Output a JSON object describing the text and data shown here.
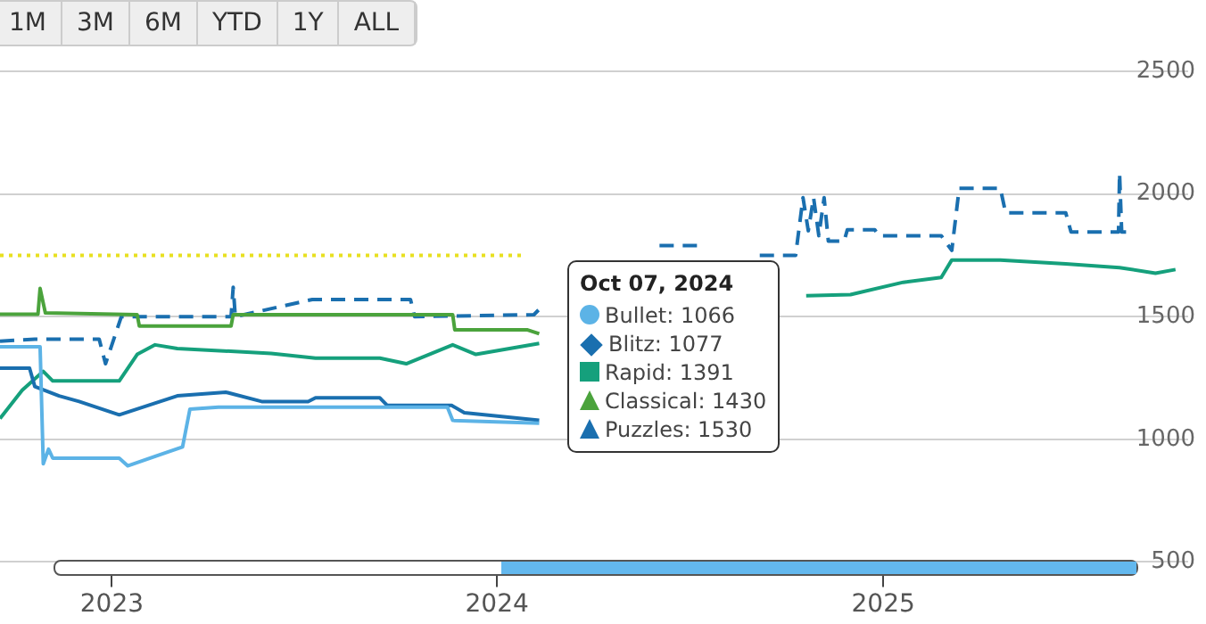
{
  "chart_data": {
    "type": "line",
    "annotations": [
      "1M",
      "3M",
      "6M",
      "YTD",
      "1Y",
      "ALL",
      "Oct 07, 2024",
      "Bullet: 1066",
      "Blitz: 1077",
      "Rapid: 1391",
      "Classical: 1430",
      "Puzzles: 1530"
    ],
    "xlim": [
      "2022-09-17",
      "2025-10-17"
    ],
    "xticks": [
      {
        "value": "2023-01-01",
        "label": "2023"
      },
      {
        "value": "2024-01-01",
        "label": "2024"
      },
      {
        "value": "2025-01-01",
        "label": "2025"
      }
    ],
    "ylim": [
      500,
      2500
    ],
    "yticks": [
      500,
      1000,
      1500,
      2000,
      2500
    ],
    "grid": "y",
    "legend": false,
    "line_style": "solid",
    "marker": "none",
    "series": [
      {
        "color": "#5cb3e6",
        "x": [
          "2022-09-17",
          "2022-10-25",
          "2022-10-28",
          "2022-11-02",
          "2022-11-06",
          "2023-01-08",
          "2023-01-16",
          "2023-03-09",
          "2023-03-16",
          "2023-04-12",
          "2023-11-15",
          "2023-11-20",
          "2024-02-10"
        ],
        "values": [
          1377,
          1377,
          900,
          960,
          923,
          923,
          892,
          969,
          1123,
          1131,
          1131,
          1077,
          1066
        ]
      },
      {
        "color": "#1a6faf",
        "x": [
          "2022-09-17",
          "2022-10-15",
          "2022-10-20",
          "2022-11-12",
          "2022-12-01",
          "2023-01-08",
          "2023-03-04",
          "2023-04-19",
          "2023-05-23",
          "2023-07-06",
          "2023-07-13",
          "2023-09-12",
          "2023-09-19",
          "2023-11-19",
          "2023-12-01",
          "2024-02-10"
        ],
        "values": [
          1290,
          1290,
          1215,
          1177,
          1154,
          1100,
          1177,
          1192,
          1154,
          1154,
          1169,
          1169,
          1138,
          1138,
          1108,
          1077
        ]
      },
      {
        "color": "#15a07c",
        "x": [
          "2022-09-17",
          "2022-10-08",
          "2022-10-28",
          "2022-11-06",
          "2023-01-08",
          "2023-01-25",
          "2023-02-11",
          "2023-03-04",
          "2023-06-01",
          "2023-07-13",
          "2023-09-12",
          "2023-10-07",
          "2023-11-20",
          "2023-12-12",
          "2024-02-10",
          "2024-06-01",
          "2024-10-20",
          "2024-12-01",
          "2025-01-20",
          "2025-02-25",
          "2025-03-07",
          "2025-04-22",
          "2025-06-23",
          "2025-08-13",
          "2025-09-16",
          "2025-10-05"
        ],
        "values": [
          1085,
          1200,
          1277,
          1238,
          1238,
          1346,
          1385,
          1370,
          1350,
          1331,
          1331,
          1308,
          1385,
          1346,
          1391,
          null,
          1585,
          1590,
          1640,
          1660,
          1731,
          1731,
          1715,
          1700,
          1677,
          1692
        ]
      },
      {
        "color": "#4ba33c",
        "x": [
          "2022-09-17",
          "2022-10-23",
          "2022-10-25",
          "2022-10-30",
          "2023-01-25",
          "2023-01-27",
          "2023-04-24",
          "2023-04-26",
          "2023-11-20",
          "2023-11-22",
          "2024-01-30",
          "2024-02-10"
        ],
        "values": [
          1510,
          1510,
          1615,
          1515,
          1508,
          1462,
          1462,
          1508,
          1508,
          1446,
          1446,
          1430
        ]
      },
      {
        "color": "#1a6faf",
        "line_style": "dashed",
        "x": [
          "2022-09-17",
          "2022-10-20",
          "2022-12-20",
          "2022-12-26",
          "2023-01-10",
          "2023-04-24",
          "2023-04-26",
          "2023-04-28",
          "2023-07-10",
          "2023-10-11",
          "2023-10-15",
          "2024-02-05",
          "2024-02-10",
          "2024-04-15",
          "2024-06-03",
          "2024-07-12",
          "2024-08-10",
          "2024-09-06",
          "2024-10-10",
          "2024-10-17",
          "2024-10-22",
          "2024-10-27",
          "2024-11-01",
          "2024-11-06",
          "2024-11-10",
          "2024-11-25",
          "2024-11-28",
          "2024-12-24",
          "2024-12-28",
          "2025-02-25",
          "2025-03-07",
          "2025-03-14",
          "2025-04-22",
          "2025-04-27",
          "2025-06-23",
          "2025-06-28",
          "2025-08-12",
          "2025-08-13",
          "2025-08-15",
          "2025-08-20"
        ],
        "values": [
          1400,
          1408,
          1408,
          1308,
          1500,
          1500,
          1620,
          1500,
          1570,
          1570,
          1500,
          1508,
          1530,
          null,
          1790,
          1790,
          null,
          1750,
          1750,
          1985,
          1850,
          1985,
          1830,
          1985,
          1808,
          1808,
          1854,
          1854,
          1830,
          1830,
          1770,
          2023,
          2023,
          1923,
          1923,
          1845,
          1845,
          2085,
          1845,
          1845
        ]
      },
      {
        "color": "#e8e020",
        "line_style": "dotted",
        "x": [
          "2022-09-17",
          "2024-01-25"
        ],
        "values": [
          1750,
          1750
        ]
      }
    ]
  }
}
